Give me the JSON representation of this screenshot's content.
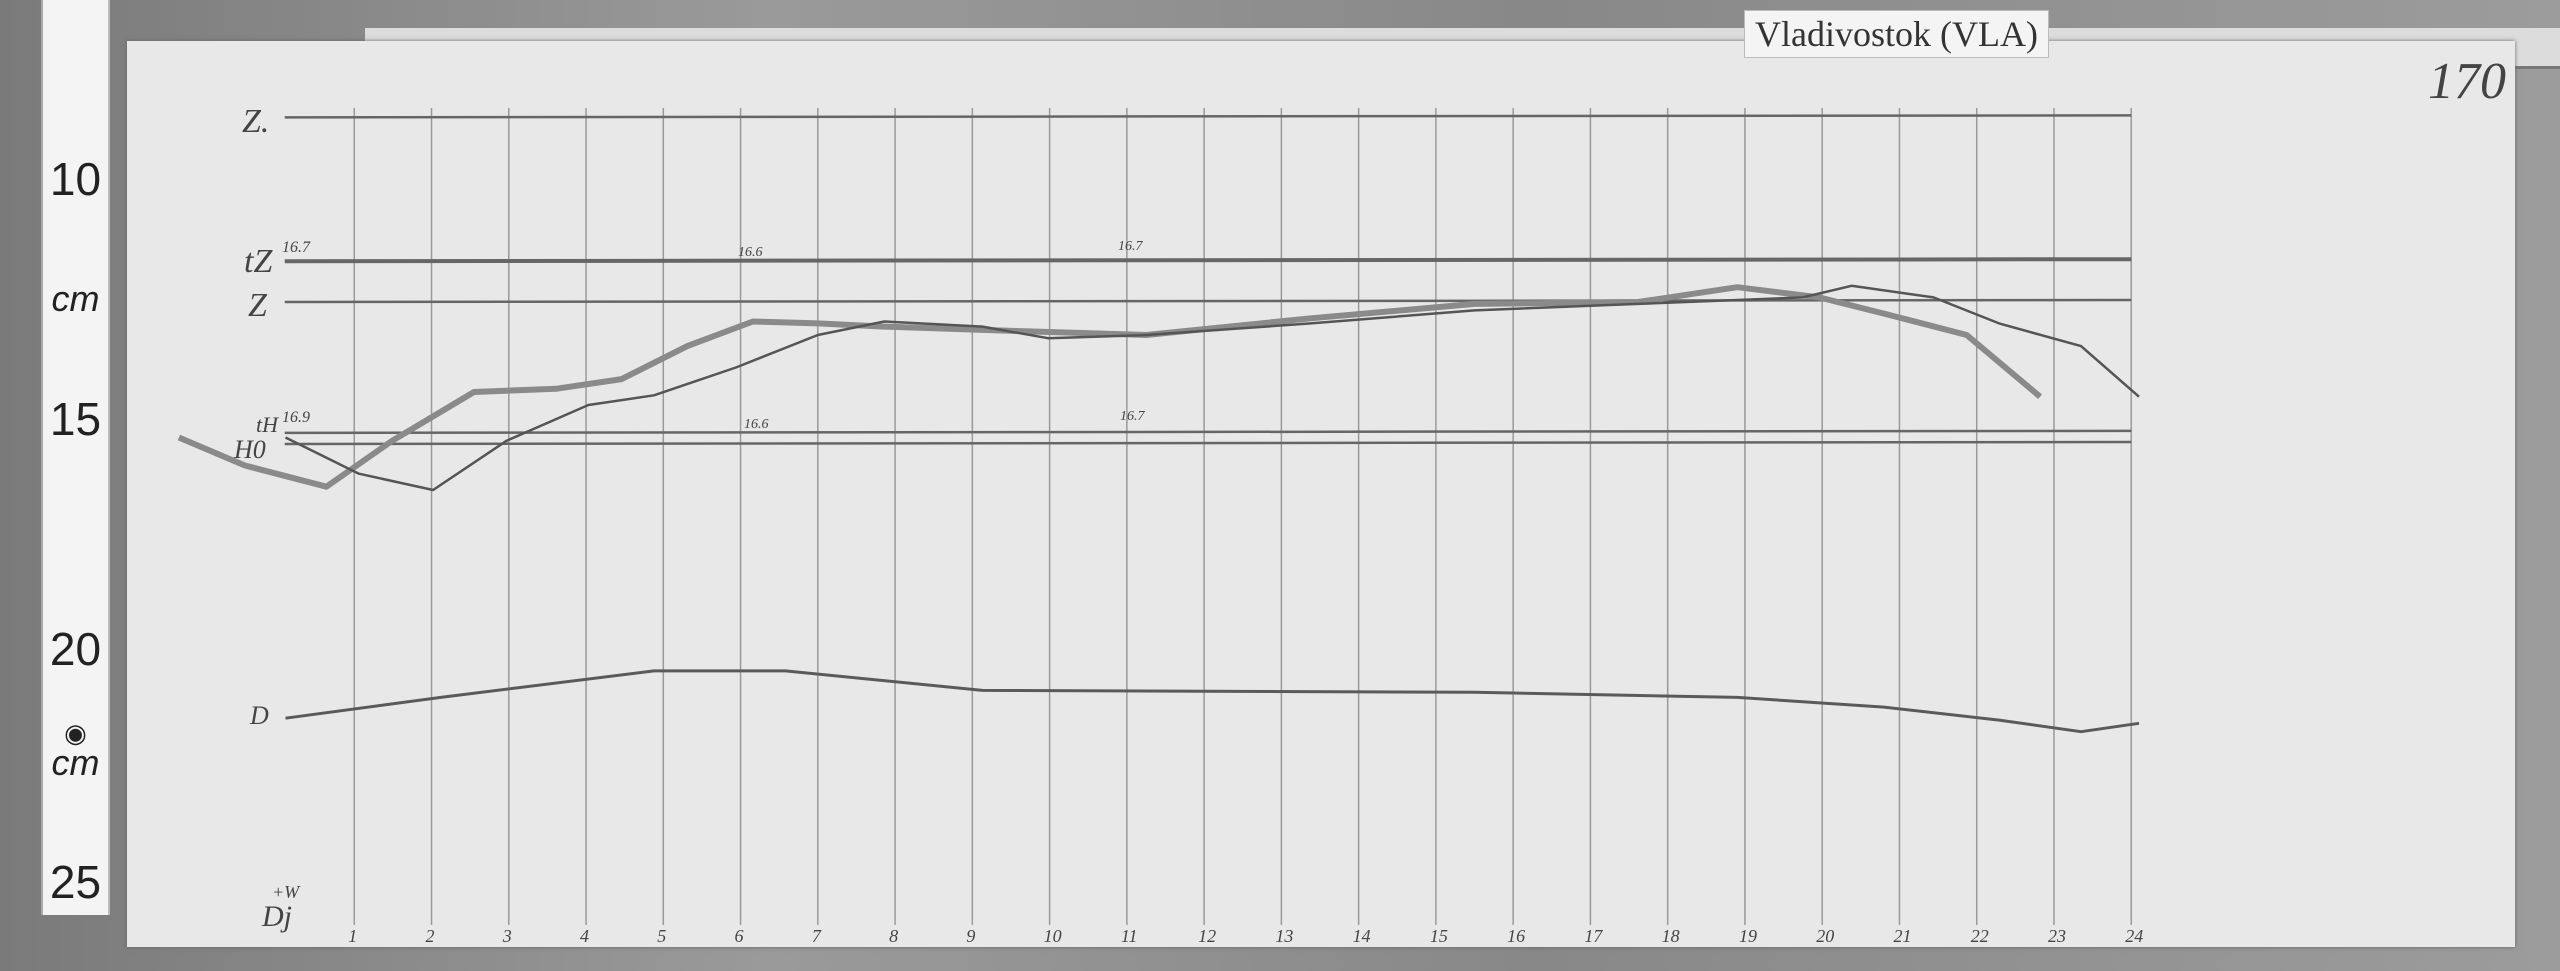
{
  "label": {
    "station": "Vladivostok (VLA)",
    "page_number": "170"
  },
  "ruler": {
    "labels": [
      "10",
      "cm",
      "15",
      "20",
      "cm",
      "25"
    ],
    "eye_icon": "eye-icon"
  },
  "colors": {
    "paper": "#e8e8e8",
    "trace": "#555555",
    "grid": "#9a9a9a"
  },
  "chart_data": {
    "type": "line",
    "title": "",
    "xlabel": "",
    "ylabel": "",
    "x_unit": "hour",
    "y_unit": "cm (ruler scale)",
    "xlim": [
      0,
      24
    ],
    "ylim": [
      8,
      25
    ],
    "x_ticks": [
      "1",
      "2",
      "3",
      "4",
      "5",
      "6",
      "7",
      "8",
      "9",
      "10",
      "11",
      "12",
      "13",
      "14",
      "15",
      "16",
      "17",
      "18",
      "19",
      "20",
      "21",
      "22",
      "23",
      "24"
    ],
    "grid": "vertical hour lines",
    "annotations": {
      "z0": "Z.",
      "tz": "tZ",
      "tz_val": "16.7",
      "z": "Z",
      "tz_mid1": "16.6",
      "tz_mid2": "16.7",
      "th": "tH",
      "th_val": "16.9",
      "th_mid1": "16.6",
      "th_mid2": "16.7",
      "h": "H0",
      "d": "D",
      "dj": "Dj",
      "w": "+W"
    },
    "baselines": [
      {
        "name": "Z.",
        "y": 8.65
      },
      {
        "name": "tZ",
        "y": 11.75
      },
      {
        "name": "Z",
        "y": 12.63
      },
      {
        "name": "tH",
        "y": 15.45
      },
      {
        "name": "H0",
        "y": 15.69
      }
    ],
    "series": [
      {
        "x": [
          -1.27,
          -0.42,
          0.64,
          1.49,
          2.55,
          3.61,
          4.46,
          5.31,
          6.16,
          7.0,
          7.86,
          9.13,
          11.25,
          13.38,
          15.5,
          17.62,
          18.9,
          19.96,
          20.8,
          21.87,
          22.82
        ],
        "y": [
          15.55,
          16.15,
          16.61,
          15.62,
          14.57,
          14.5,
          14.29,
          13.58,
          13.05,
          13.09,
          13.16,
          13.23,
          13.34,
          12.98,
          12.67,
          12.63,
          12.31,
          12.53,
          12.88,
          13.34,
          14.67
        ]
      },
      {
        "x": [
          0.11,
          1.06,
          2.02,
          2.97,
          4.03,
          4.88,
          5.94,
          7.0,
          7.86,
          9.13,
          9.98,
          11.25,
          13.38,
          15.5,
          17.62,
          19.75,
          20.38,
          21.44,
          22.29,
          23.35,
          24.1
        ],
        "y": [
          15.55,
          16.33,
          16.68,
          15.62,
          14.85,
          14.64,
          14.04,
          13.34,
          13.05,
          13.16,
          13.41,
          13.34,
          13.09,
          12.81,
          12.67,
          12.53,
          12.28,
          12.53,
          13.09,
          13.58,
          14.67
        ]
      },
      {
        "x": [
          0.11,
          2.12,
          4.88,
          6.58,
          9.13,
          15.5,
          18.9,
          20.8,
          22.29,
          23.35,
          24.1
        ],
        "y": [
          21.6,
          21.15,
          20.58,
          20.58,
          21.0,
          21.04,
          21.15,
          21.36,
          21.64,
          21.89,
          21.71
        ]
      }
    ]
  }
}
